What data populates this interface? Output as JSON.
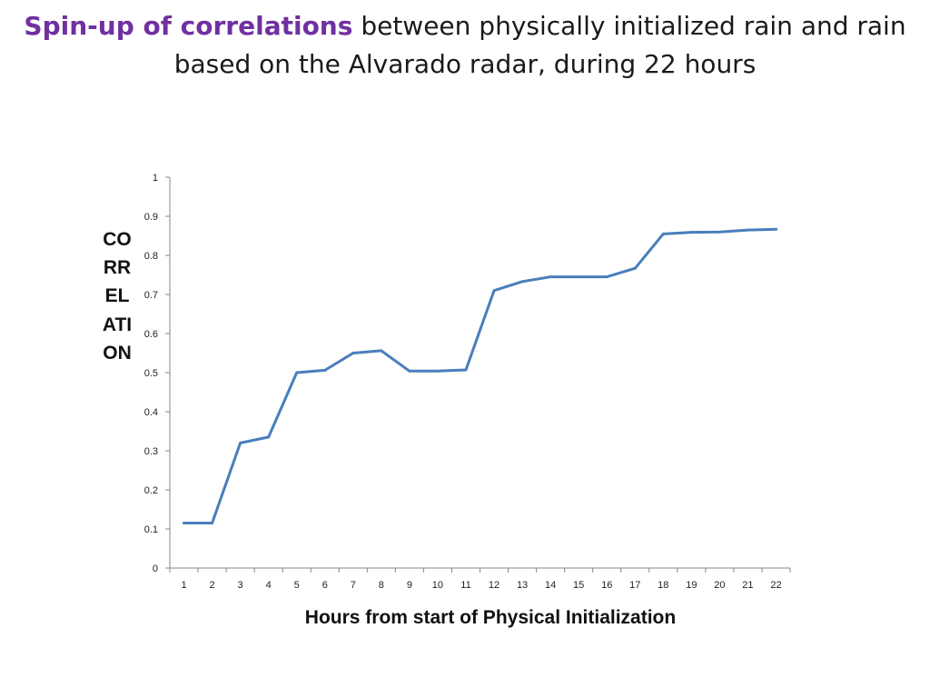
{
  "title": {
    "highlight": "Spin-up of correlations",
    "rest": " between physically initialized rain and rain based on the Alvarado radar, during 22 hours"
  },
  "colors": {
    "highlight": "#7030a0",
    "line": "#4a7ebb",
    "axis": "#888888"
  },
  "chart_data": {
    "type": "line",
    "title": "",
    "xlabel": "Hours from start of Physical Initialization",
    "ylabel": "CORRELATION",
    "categories": [
      "1",
      "2",
      "3",
      "4",
      "5",
      "6",
      "7",
      "8",
      "9",
      "10",
      "11",
      "12",
      "13",
      "14",
      "15",
      "16",
      "17",
      "18",
      "19",
      "20",
      "21",
      "22"
    ],
    "series": [
      {
        "name": "",
        "values": [
          0.115,
          0.115,
          0.32,
          0.335,
          0.5,
          0.506,
          0.55,
          0.556,
          0.504,
          0.504,
          0.507,
          0.71,
          0.733,
          0.745,
          0.745,
          0.745,
          0.767,
          0.855,
          0.859,
          0.86,
          0.865,
          0.867
        ]
      }
    ],
    "ylim": [
      0,
      1
    ],
    "yticks": [
      "0",
      "0.1",
      "0.2",
      "0.3",
      "0.4",
      "0.5",
      "0.6",
      "0.7",
      "0.8",
      "0.9",
      "1"
    ],
    "grid": false
  }
}
